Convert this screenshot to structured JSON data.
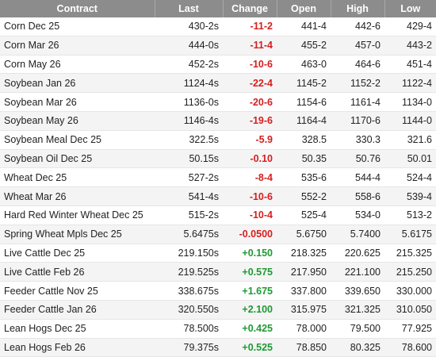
{
  "columns": {
    "contract": "Contract",
    "last": "Last",
    "change": "Change",
    "open": "Open",
    "high": "High",
    "low": "Low"
  },
  "rows": [
    {
      "contract": "Corn Dec 25",
      "last": "430-2s",
      "change": "-11-2",
      "dir": "neg",
      "open": "441-4",
      "high": "442-6",
      "low": "429-4"
    },
    {
      "contract": "Corn Mar 26",
      "last": "444-0s",
      "change": "-11-4",
      "dir": "neg",
      "open": "455-2",
      "high": "457-0",
      "low": "443-2"
    },
    {
      "contract": "Corn May 26",
      "last": "452-2s",
      "change": "-10-6",
      "dir": "neg",
      "open": "463-0",
      "high": "464-6",
      "low": "451-4"
    },
    {
      "contract": "Soybean Jan 26",
      "last": "1124-4s",
      "change": "-22-4",
      "dir": "neg",
      "open": "1145-2",
      "high": "1152-2",
      "low": "1122-4"
    },
    {
      "contract": "Soybean Mar 26",
      "last": "1136-0s",
      "change": "-20-6",
      "dir": "neg",
      "open": "1154-6",
      "high": "1161-4",
      "low": "1134-0"
    },
    {
      "contract": "Soybean May 26",
      "last": "1146-4s",
      "change": "-19-6",
      "dir": "neg",
      "open": "1164-4",
      "high": "1170-6",
      "low": "1144-0"
    },
    {
      "contract": "Soybean Meal Dec 25",
      "last": "322.5s",
      "change": "-5.9",
      "dir": "neg",
      "open": "328.5",
      "high": "330.3",
      "low": "321.6"
    },
    {
      "contract": "Soybean Oil Dec 25",
      "last": "50.15s",
      "change": "-0.10",
      "dir": "neg",
      "open": "50.35",
      "high": "50.76",
      "low": "50.01"
    },
    {
      "contract": "Wheat Dec 25",
      "last": "527-2s",
      "change": "-8-4",
      "dir": "neg",
      "open": "535-6",
      "high": "544-4",
      "low": "524-4"
    },
    {
      "contract": "Wheat Mar 26",
      "last": "541-4s",
      "change": "-10-6",
      "dir": "neg",
      "open": "552-2",
      "high": "558-6",
      "low": "539-4"
    },
    {
      "contract": "Hard Red Winter Wheat Dec 25",
      "last": "515-2s",
      "change": "-10-4",
      "dir": "neg",
      "open": "525-4",
      "high": "534-0",
      "low": "513-2"
    },
    {
      "contract": "Spring Wheat Mpls Dec 25",
      "last": "5.6475s",
      "change": "-0.0500",
      "dir": "neg",
      "open": "5.6750",
      "high": "5.7400",
      "low": "5.6175"
    },
    {
      "contract": "Live Cattle Dec 25",
      "last": "219.150s",
      "change": "+0.150",
      "dir": "pos",
      "open": "218.325",
      "high": "220.625",
      "low": "215.325"
    },
    {
      "contract": "Live Cattle Feb 26",
      "last": "219.525s",
      "change": "+0.575",
      "dir": "pos",
      "open": "217.950",
      "high": "221.100",
      "low": "215.250"
    },
    {
      "contract": "Feeder Cattle Nov 25",
      "last": "338.675s",
      "change": "+1.675",
      "dir": "pos",
      "open": "337.800",
      "high": "339.650",
      "low": "330.000"
    },
    {
      "contract": "Feeder Cattle Jan 26",
      "last": "320.550s",
      "change": "+2.100",
      "dir": "pos",
      "open": "315.975",
      "high": "321.325",
      "low": "310.050"
    },
    {
      "contract": "Lean Hogs Dec 25",
      "last": "78.500s",
      "change": "+0.425",
      "dir": "pos",
      "open": "78.000",
      "high": "79.500",
      "low": "77.925"
    },
    {
      "contract": "Lean Hogs Feb 26",
      "last": "79.375s",
      "change": "+0.525",
      "dir": "pos",
      "open": "78.850",
      "high": "80.325",
      "low": "78.600"
    }
  ],
  "colors": {
    "header_bg": "#8c8c8c",
    "negative": "#d71e1e",
    "positive": "#1e9a32",
    "row_alt": "#f4f4f4"
  }
}
